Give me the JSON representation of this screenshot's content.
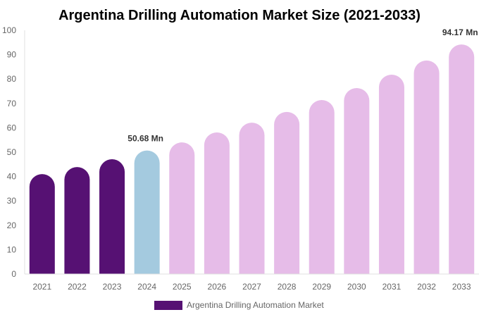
{
  "chart_data": {
    "type": "bar",
    "title": "Argentina Drilling Automation Market Size (2021-2033)",
    "xlabel": "",
    "ylabel": "",
    "ylim": [
      0,
      100
    ],
    "yticks": [
      0,
      10,
      20,
      30,
      40,
      50,
      60,
      70,
      80,
      90,
      100
    ],
    "grid": false,
    "legend_position": "bottom",
    "categories": [
      "2021",
      "2022",
      "2023",
      "2024",
      "2025",
      "2026",
      "2027",
      "2028",
      "2029",
      "2030",
      "2031",
      "2032",
      "2033"
    ],
    "series": [
      {
        "name": "Argentina Drilling Automation Market",
        "values": [
          41.0,
          43.9,
          47.1,
          50.68,
          54.0,
          58.1,
          62.1,
          66.5,
          71.4,
          76.3,
          81.8,
          87.6,
          94.17
        ]
      }
    ],
    "bar_colors": [
      "#561173",
      "#561173",
      "#561173",
      "#a4cadf",
      "#e6bce8",
      "#e6bce8",
      "#e6bce8",
      "#e6bce8",
      "#e6bce8",
      "#e6bce8",
      "#e6bce8",
      "#e6bce8",
      "#e6bce8"
    ],
    "legend_color": "#561173",
    "data_labels": [
      {
        "category": "2024",
        "text": "50.68 Mn"
      },
      {
        "category": "2033",
        "text": "94.17 Mn"
      }
    ]
  }
}
